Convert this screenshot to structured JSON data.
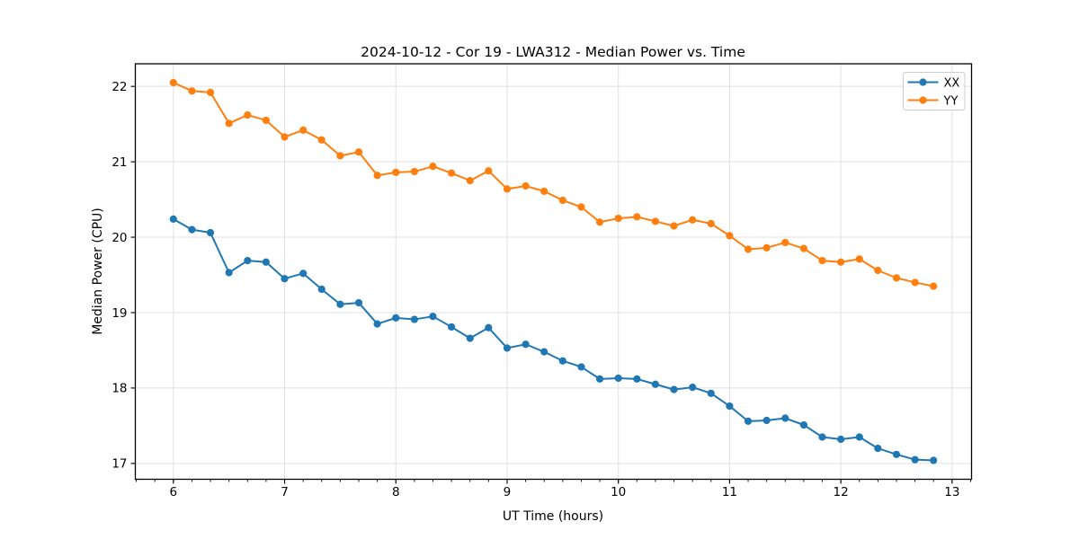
{
  "figure": {
    "background": "#ffffff"
  },
  "chart_data": {
    "type": "line",
    "title": "2024-10-12 - Cor 19 - LWA312 - Median Power vs. Time",
    "xlabel": "UT Time (hours)",
    "ylabel": "Median Power (CPU)",
    "x": [
      6.0,
      6.167,
      6.333,
      6.5,
      6.667,
      6.833,
      7.0,
      7.167,
      7.333,
      7.5,
      7.667,
      7.833,
      8.0,
      8.167,
      8.333,
      8.5,
      8.667,
      8.833,
      9.0,
      9.167,
      9.333,
      9.5,
      9.667,
      9.833,
      10.0,
      10.167,
      10.333,
      10.5,
      10.667,
      10.833,
      11.0,
      11.167,
      11.333,
      11.5,
      11.667,
      11.833,
      12.0,
      12.167,
      12.333,
      12.5,
      12.667,
      12.833
    ],
    "series": [
      {
        "name": "XX",
        "color": "#1f77b4",
        "values": [
          20.24,
          20.1,
          20.06,
          19.53,
          19.69,
          19.67,
          19.45,
          19.52,
          19.31,
          19.11,
          19.13,
          18.85,
          18.93,
          18.91,
          18.95,
          18.81,
          18.66,
          18.8,
          18.53,
          18.58,
          18.48,
          18.36,
          18.28,
          18.12,
          18.13,
          18.12,
          18.05,
          17.98,
          18.01,
          17.93,
          17.76,
          17.56,
          17.57,
          17.6,
          17.51,
          17.35,
          17.32,
          17.35,
          17.2,
          17.12,
          17.05,
          17.04
        ]
      },
      {
        "name": "YY",
        "color": "#ff7f0e",
        "values": [
          22.05,
          21.94,
          21.92,
          21.51,
          21.62,
          21.55,
          21.33,
          21.42,
          21.29,
          21.08,
          21.13,
          20.82,
          20.86,
          20.87,
          20.94,
          20.85,
          20.75,
          20.88,
          20.64,
          20.68,
          20.61,
          20.49,
          20.4,
          20.2,
          20.25,
          20.27,
          20.21,
          20.15,
          20.23,
          20.18,
          20.02,
          19.84,
          19.86,
          19.93,
          19.85,
          19.69,
          19.67,
          19.71,
          19.56,
          19.46,
          19.4,
          19.35
        ]
      }
    ],
    "xlim": [
      5.658,
      13.175
    ],
    "ylim": [
      16.79,
      22.3
    ],
    "xticks": [
      6,
      7,
      8,
      9,
      10,
      11,
      12,
      13
    ],
    "xtick_labels": [
      "6",
      "7",
      "8",
      "9",
      "10",
      "11",
      "12",
      "13"
    ],
    "yticks": [
      17,
      18,
      19,
      20,
      21,
      22
    ],
    "ytick_labels": [
      "17",
      "18",
      "19",
      "20",
      "21",
      "22"
    ],
    "minor_xtick_step": 0.166667,
    "grid": true,
    "grid_color": "#e0e0e0",
    "spine_color": "#000000",
    "legend": {
      "position": "upper right",
      "entries": [
        "XX",
        "YY"
      ]
    }
  }
}
